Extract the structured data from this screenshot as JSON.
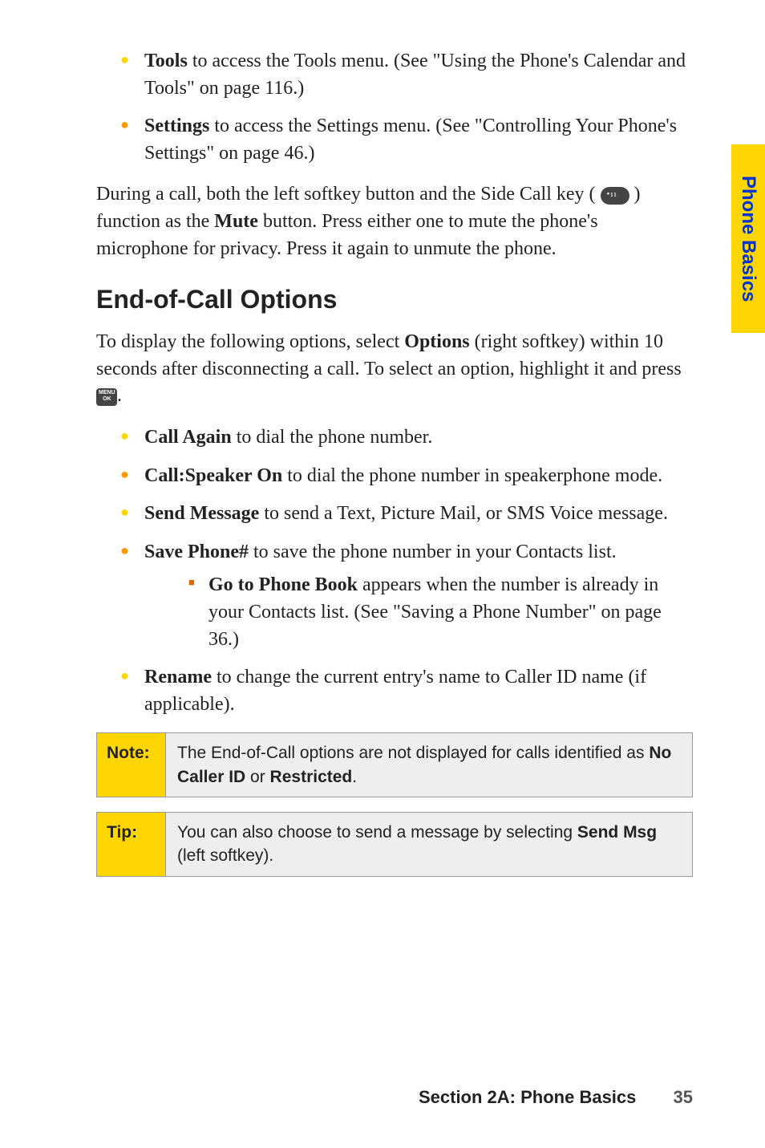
{
  "side_tab": "Phone Basics",
  "top_bullets": [
    {
      "cls": "y",
      "bold": "Tools",
      "rest": " to access the Tools menu. (See \"Using the Phone's Calendar and Tools\" on page 116.)"
    },
    {
      "cls": "o",
      "bold": "Settings",
      "rest": " to access the Settings menu. (See \"Controlling Your Phone's Settings\" on page 46.)"
    }
  ],
  "para1_a": "During a call, both the left softkey button and the Side Call key ( ",
  "para1_b": " ) function as the ",
  "para1_bold": "Mute",
  "para1_c": " button. Press either one to mute the phone's microphone for privacy. Press it again to unmute the phone.",
  "heading": "End-of-Call Options",
  "para2_a": "To display the following options, select ",
  "para2_bold": "Options",
  "para2_b": " (right softkey) within 10 seconds after disconnecting a call. To select an option, highlight it and press ",
  "para2_c": ".",
  "options": [
    {
      "cls": "y",
      "bold": "Call Again",
      "rest": " to dial the phone number."
    },
    {
      "cls": "o",
      "bold": "Call:Speaker On",
      "rest": " to dial the phone number in speakerphone mode."
    },
    {
      "cls": "y",
      "bold": "Send Message",
      "rest": " to send a Text, Picture Mail, or SMS Voice message."
    },
    {
      "cls": "o",
      "bold": "Save Phone#",
      "rest": " to save the phone number in your Contacts list.",
      "sub": {
        "bold": "Go to Phone Book",
        "rest": " appears when the number is already in your Contacts list. (See \"Saving a Phone Number\" on page 36.)"
      }
    },
    {
      "cls": "y",
      "bold": "Rename",
      "rest": " to change the current entry's name to Caller ID name (if applicable)."
    }
  ],
  "note": {
    "label": "Note:",
    "body_a": "The End-of-Call options are not displayed for calls identified as ",
    "body_bold1": "No Caller ID",
    "body_b": " or ",
    "body_bold2": "Restricted",
    "body_c": "."
  },
  "tip": {
    "label": "Tip:",
    "body_a": "You can also choose to send a message by selecting ",
    "body_bold": "Send Msg",
    "body_b": " (left softkey)."
  },
  "footer": {
    "section": "Section 2A: Phone Basics",
    "page": "35"
  }
}
